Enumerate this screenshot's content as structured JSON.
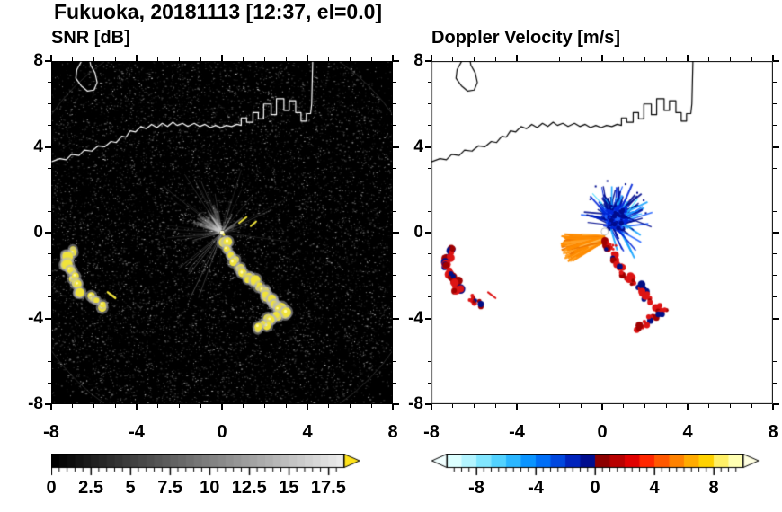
{
  "title": "Fukuoka, 20181113 [12:37, el=0.0]",
  "panels": {
    "snr": {
      "subtitle": "SNR [dB]"
    },
    "doppler": {
      "subtitle": "Doppler Velocity [m/s]"
    }
  },
  "chart_data": [
    {
      "id": "snr",
      "type": "heatmap",
      "title": "SNR [dB]",
      "xlim": [
        -8,
        8
      ],
      "ylim": [
        -8,
        8
      ],
      "xticks": [
        -8,
        -4,
        0,
        4,
        8
      ],
      "yticks": [
        -8,
        -4,
        0,
        4,
        8
      ],
      "minor_tick_step": 1,
      "background": "#000000",
      "coast_color": "#ffffff",
      "echo_palette": {
        "core": "#f0e33a",
        "halo": "#b9b9b9",
        "bright": "#fffbb0"
      },
      "colorbar": {
        "orientation": "horizontal",
        "range": [
          0,
          18.5
        ],
        "ticks": [
          0,
          2.5,
          5,
          7.5,
          10,
          12.5,
          15,
          17.5
        ],
        "tick_labels": [
          "0",
          "2.5",
          "5",
          "7.5",
          "10",
          "12.5",
          "15",
          "17.5"
        ],
        "start_color": "#000000",
        "end_color": "#ebebeb",
        "over_color": "#ffe31a"
      }
    },
    {
      "id": "doppler",
      "type": "heatmap",
      "title": "Doppler Velocity [m/s]",
      "xlim": [
        -8,
        8
      ],
      "ylim": [
        -8,
        8
      ],
      "xticks": [
        -8,
        -4,
        0,
        4,
        8
      ],
      "yticks": [
        -8,
        -4,
        0,
        4,
        8
      ],
      "minor_tick_step": 1,
      "background": "#ffffff",
      "coast_color": "#000000",
      "echo_palette": {
        "away": [
          "#000c8e",
          "#0026d8",
          "#1e5fff",
          "#17a4ff",
          "#45dcff"
        ],
        "toward": [
          "#ff8c00",
          "#ffa126",
          "#f07800",
          "#ffb950"
        ],
        "mixed_red": "#dd1414",
        "mixed_dark": "#a00000",
        "mixed_navy": "#000e86"
      },
      "colorbar": {
        "orientation": "horizontal",
        "range": [
          -10,
          10
        ],
        "ticks": [
          -8,
          -4,
          0,
          4,
          8
        ],
        "tick_labels": [
          "-8",
          "-4",
          "0",
          "4",
          "8"
        ],
        "segment_colors": [
          "#dcffff",
          "#b2f4ff",
          "#81e6ff",
          "#52d2ff",
          "#2ab6ff",
          "#0a94ff",
          "#006ef6",
          "#0047de",
          "#0023bc",
          "#000d8e",
          "#8c0000",
          "#b80000",
          "#e00000",
          "#ff2600",
          "#ff5800",
          "#ff8200",
          "#ffab00",
          "#ffd200",
          "#fff066",
          "#ffffb2"
        ],
        "under_color": "#f2ffff",
        "over_color": "#ffffe2"
      }
    }
  ],
  "map": {
    "coastline": [
      [
        -8,
        3.3
      ],
      [
        -7.6,
        3.45
      ],
      [
        -7.3,
        3.4
      ],
      [
        -7.05,
        3.65
      ],
      [
        -6.7,
        3.6
      ],
      [
        -6.45,
        3.85
      ],
      [
        -6.1,
        3.8
      ],
      [
        -5.8,
        4.05
      ],
      [
        -5.5,
        4.0
      ],
      [
        -5.2,
        4.25
      ],
      [
        -4.95,
        4.2
      ],
      [
        -4.7,
        4.5
      ],
      [
        -4.5,
        4.45
      ],
      [
        -4.3,
        4.75
      ],
      [
        -4.05,
        4.7
      ],
      [
        -3.8,
        4.95
      ],
      [
        -3.55,
        4.85
      ],
      [
        -3.3,
        5.05
      ],
      [
        -3.05,
        4.9
      ],
      [
        -2.8,
        5.1
      ],
      [
        -2.55,
        4.95
      ],
      [
        -2.3,
        5.15
      ],
      [
        -2.1,
        5.0
      ],
      [
        -1.85,
        5.1
      ],
      [
        -1.6,
        4.95
      ],
      [
        -1.3,
        5.1
      ],
      [
        -1.05,
        4.95
      ],
      [
        -0.8,
        5.05
      ],
      [
        -0.55,
        4.9
      ],
      [
        -0.3,
        5.0
      ],
      [
        -0.05,
        4.9
      ],
      [
        0.2,
        5.0
      ],
      [
        0.45,
        4.95
      ],
      [
        0.7,
        5.05
      ],
      [
        0.9,
        5.0
      ],
      [
        0.9,
        5.35
      ],
      [
        1.15,
        5.35
      ],
      [
        1.15,
        5.15
      ],
      [
        1.45,
        5.15
      ],
      [
        1.45,
        5.6
      ],
      [
        1.7,
        5.6
      ],
      [
        1.7,
        5.3
      ],
      [
        1.95,
        5.3
      ],
      [
        1.95,
        6.0
      ],
      [
        2.3,
        6.0
      ],
      [
        2.3,
        5.5
      ],
      [
        2.55,
        5.5
      ],
      [
        2.55,
        6.25
      ],
      [
        2.9,
        6.25
      ],
      [
        2.9,
        5.7
      ],
      [
        3.15,
        5.7
      ],
      [
        3.15,
        6.15
      ],
      [
        3.45,
        6.15
      ],
      [
        3.45,
        5.6
      ],
      [
        3.7,
        5.6
      ],
      [
        3.7,
        5.2
      ],
      [
        3.95,
        5.2
      ],
      [
        3.95,
        5.55
      ],
      [
        4.15,
        5.55
      ],
      [
        4.2,
        6.0
      ],
      [
        4.25,
        8.05
      ]
    ],
    "island": [
      [
        -6.55,
        8.05
      ],
      [
        -6.8,
        7.6
      ],
      [
        -6.85,
        7.2
      ],
      [
        -6.6,
        6.85
      ],
      [
        -6.3,
        6.6
      ],
      [
        -6.0,
        6.65
      ],
      [
        -5.85,
        7.0
      ],
      [
        -5.95,
        7.45
      ],
      [
        -6.15,
        7.8
      ],
      [
        -6.2,
        8.05
      ]
    ]
  },
  "echoes": {
    "radar_center": [
      0,
      0
    ],
    "left_arc": [
      [
        -7.05,
        -0.85
      ],
      [
        -7.25,
        -1.15
      ],
      [
        -7.3,
        -1.5
      ],
      [
        -7.15,
        -1.8
      ],
      [
        -6.95,
        -2.05
      ],
      [
        -6.82,
        -2.35
      ],
      [
        -6.78,
        -2.7
      ]
    ],
    "left_small": [
      [
        -6.1,
        -3.05
      ],
      [
        -5.9,
        -3.25
      ],
      [
        -5.68,
        -3.42
      ]
    ],
    "left_dash": [
      [
        -5.35,
        -2.78
      ],
      [
        -5.0,
        -3.05
      ]
    ],
    "southeast_chain": [
      [
        0.15,
        -0.5
      ],
      [
        0.3,
        -0.8
      ],
      [
        0.5,
        -1.05
      ],
      [
        0.65,
        -1.35
      ],
      [
        0.8,
        -1.65
      ],
      [
        1.0,
        -1.9
      ],
      [
        1.25,
        -2.1
      ],
      [
        1.5,
        -2.3
      ],
      [
        1.75,
        -2.5
      ],
      [
        1.95,
        -2.75
      ],
      [
        2.1,
        -3.0
      ],
      [
        2.3,
        -3.2
      ],
      [
        2.55,
        -3.4
      ],
      [
        2.72,
        -3.62
      ],
      [
        2.95,
        -3.68
      ],
      [
        2.5,
        -3.85
      ],
      [
        2.25,
        -4.05
      ],
      [
        2.0,
        -4.25
      ],
      [
        1.72,
        -4.42
      ]
    ],
    "ne_dashes": [
      [
        [
          0.8,
          0.45
        ],
        [
          1.15,
          0.72
        ]
      ],
      [
        [
          1.35,
          0.3
        ],
        [
          1.6,
          0.52
        ]
      ]
    ],
    "doppler_blob_center": [
      0.55,
      0.55
    ],
    "doppler_wedge_apex": [
      0.05,
      -0.3
    ],
    "doppler_stray_dots": [
      [
        -0.35,
        2.2
      ],
      [
        0.2,
        2.45
      ],
      [
        1.05,
        2.3
      ],
      [
        1.6,
        1.9
      ],
      [
        2.0,
        0.95
      ],
      [
        -0.6,
        1.6
      ],
      [
        1.55,
        1.25
      ],
      [
        1.9,
        1.55
      ]
    ]
  }
}
